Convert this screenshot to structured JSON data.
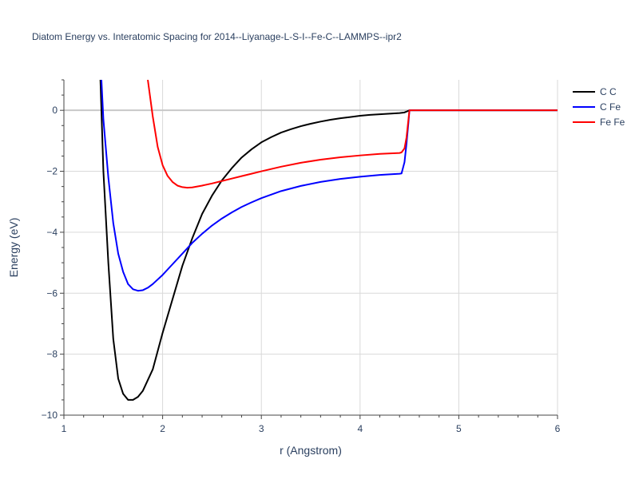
{
  "chart_data": {
    "type": "line",
    "title": "Diatom Energy vs. Interatomic Spacing for 2014--Liyanage-L-S-I--Fe-C--LAMMPS--ipr2",
    "xlabel": "r (Angstrom)",
    "ylabel": "Energy (eV)",
    "xlim": [
      1,
      6
    ],
    "ylim": [
      -10,
      1
    ],
    "xticks": [
      1,
      2,
      3,
      4,
      5,
      6
    ],
    "yticks": [
      -10,
      -8,
      -6,
      -4,
      -2,
      0
    ],
    "grid": true,
    "legend_position": "top-right",
    "series": [
      {
        "name": "C C",
        "color": "#000000",
        "x": [
          1.37,
          1.4,
          1.45,
          1.5,
          1.55,
          1.6,
          1.65,
          1.7,
          1.75,
          1.8,
          1.9,
          2.0,
          2.1,
          2.2,
          2.3,
          2.4,
          2.5,
          2.6,
          2.7,
          2.8,
          2.9,
          3.0,
          3.1,
          3.2,
          3.3,
          3.4,
          3.5,
          3.6,
          3.7,
          3.8,
          3.9,
          4.0,
          4.1,
          4.2,
          4.3,
          4.4,
          4.45,
          4.5,
          5.0,
          6.0
        ],
        "y": [
          1.0,
          -2.0,
          -5.0,
          -7.5,
          -8.8,
          -9.3,
          -9.5,
          -9.5,
          -9.4,
          -9.2,
          -8.5,
          -7.3,
          -6.2,
          -5.1,
          -4.2,
          -3.4,
          -2.8,
          -2.3,
          -1.9,
          -1.55,
          -1.28,
          -1.05,
          -0.88,
          -0.73,
          -0.62,
          -0.52,
          -0.44,
          -0.37,
          -0.31,
          -0.26,
          -0.22,
          -0.18,
          -0.15,
          -0.13,
          -0.11,
          -0.09,
          -0.07,
          0.0,
          0.0,
          0.0
        ]
      },
      {
        "name": "C Fe",
        "color": "#0000ff",
        "x": [
          1.38,
          1.4,
          1.45,
          1.5,
          1.55,
          1.6,
          1.65,
          1.7,
          1.75,
          1.8,
          1.85,
          1.9,
          2.0,
          2.1,
          2.2,
          2.3,
          2.4,
          2.5,
          2.6,
          2.7,
          2.8,
          2.9,
          3.0,
          3.2,
          3.4,
          3.6,
          3.8,
          4.0,
          4.2,
          4.4,
          4.42,
          4.45,
          4.47,
          4.49,
          4.5,
          5.0,
          6.0
        ],
        "y": [
          1.0,
          -0.3,
          -2.2,
          -3.7,
          -4.7,
          -5.3,
          -5.7,
          -5.87,
          -5.92,
          -5.9,
          -5.82,
          -5.7,
          -5.4,
          -5.05,
          -4.7,
          -4.35,
          -4.05,
          -3.78,
          -3.55,
          -3.35,
          -3.17,
          -3.02,
          -2.88,
          -2.65,
          -2.48,
          -2.35,
          -2.25,
          -2.18,
          -2.12,
          -2.08,
          -2.07,
          -1.7,
          -1.1,
          -0.4,
          0.0,
          0.0,
          0.0
        ]
      },
      {
        "name": "Fe Fe",
        "color": "#ff0000",
        "x": [
          1.85,
          1.9,
          1.95,
          2.0,
          2.05,
          2.1,
          2.15,
          2.2,
          2.25,
          2.3,
          2.35,
          2.4,
          2.5,
          2.6,
          2.7,
          2.8,
          2.9,
          3.0,
          3.2,
          3.4,
          3.6,
          3.8,
          4.0,
          4.2,
          4.4,
          4.42,
          4.45,
          4.47,
          4.49,
          4.5,
          5.0,
          6.0
        ],
        "y": [
          1.0,
          -0.2,
          -1.2,
          -1.8,
          -2.15,
          -2.35,
          -2.47,
          -2.52,
          -2.54,
          -2.53,
          -2.5,
          -2.47,
          -2.4,
          -2.32,
          -2.24,
          -2.16,
          -2.08,
          -2.0,
          -1.85,
          -1.72,
          -1.62,
          -1.54,
          -1.48,
          -1.43,
          -1.4,
          -1.38,
          -1.25,
          -0.9,
          -0.3,
          0.0,
          0.0,
          0.0
        ]
      }
    ]
  }
}
